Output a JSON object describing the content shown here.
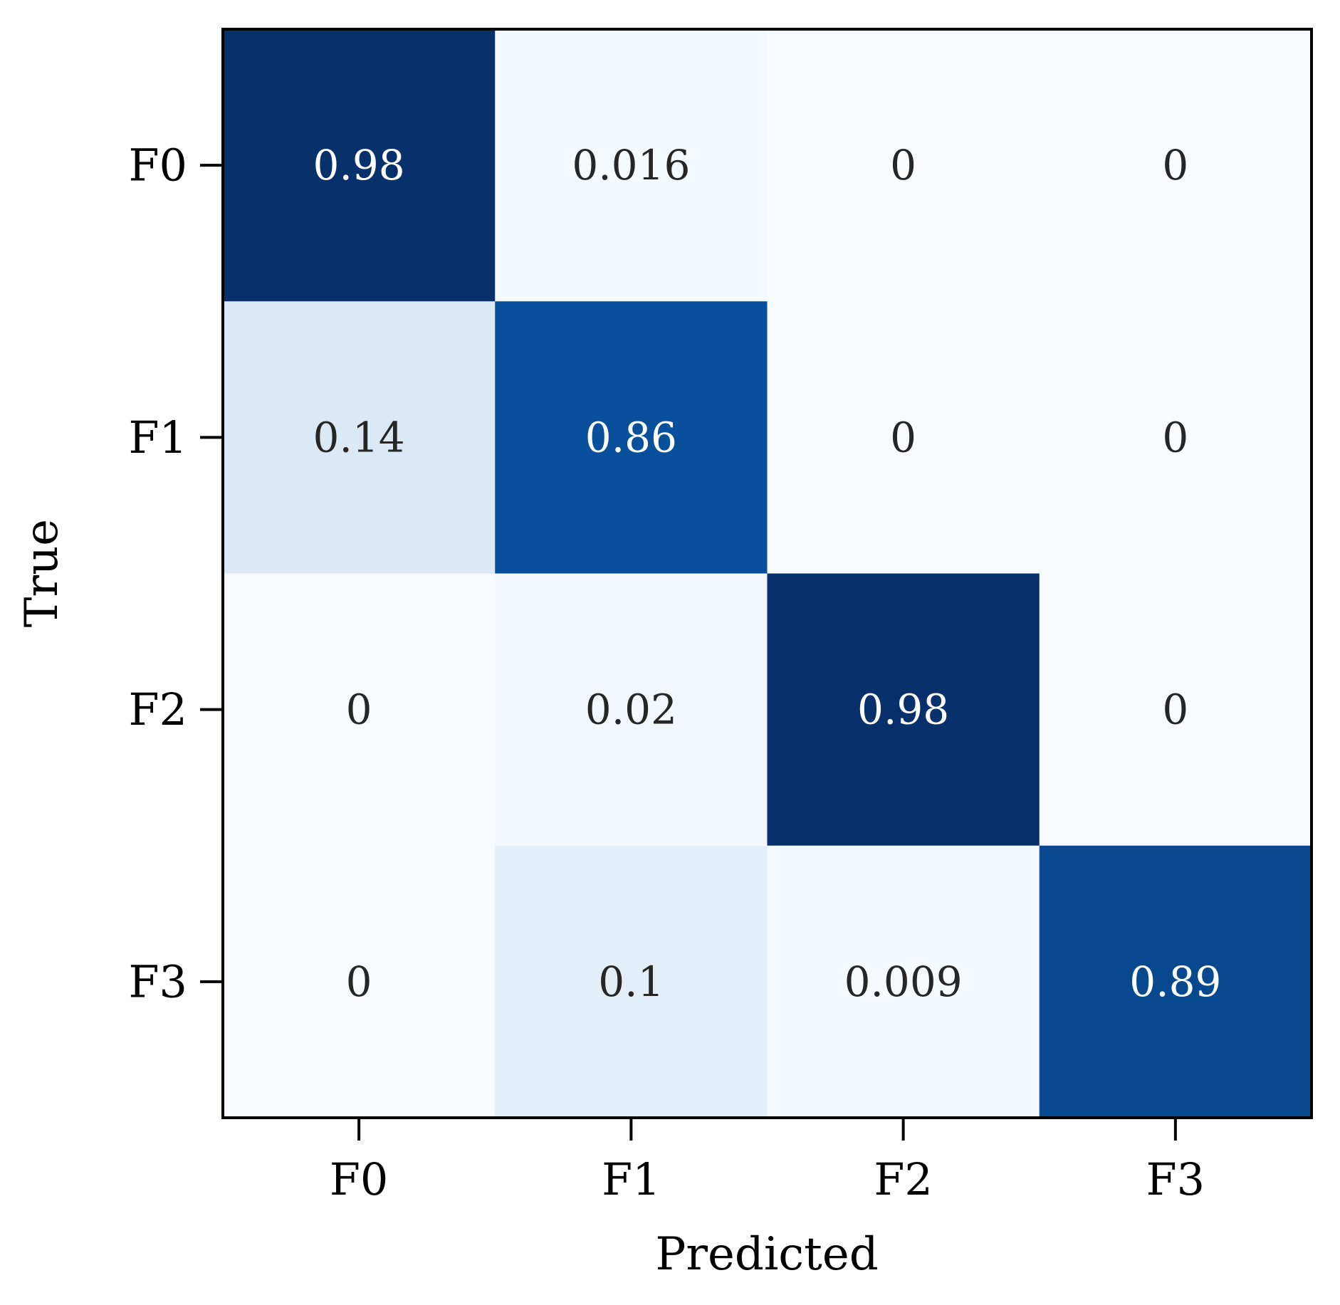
{
  "chart_data": {
    "type": "heatmap",
    "title": "",
    "xlabel": "Predicted",
    "ylabel": "True",
    "x_categories": [
      "F0",
      "F1",
      "F2",
      "F3"
    ],
    "y_categories": [
      "F0",
      "F1",
      "F2",
      "F3"
    ],
    "values": [
      [
        0.98,
        0.016,
        0,
        0
      ],
      [
        0.14,
        0.86,
        0,
        0
      ],
      [
        0,
        0.02,
        0.98,
        0
      ],
      [
        0,
        0.1,
        0.009,
        0.89
      ]
    ],
    "value_labels": [
      [
        "0.98",
        "0.016",
        "0",
        "0"
      ],
      [
        "0.14",
        "0.86",
        "0",
        "0"
      ],
      [
        "0",
        "0.02",
        "0.98",
        "0"
      ],
      [
        "0",
        "0.1",
        "0.009",
        "0.89"
      ]
    ],
    "colormap": "Blues",
    "color_range": [
      0,
      0.98
    ],
    "colors": {
      "low": "#f7fbff",
      "high": "#08306b",
      "dark_text": "#262626",
      "light_text": "#ffffff"
    },
    "colorbar": false,
    "grid": false
  }
}
